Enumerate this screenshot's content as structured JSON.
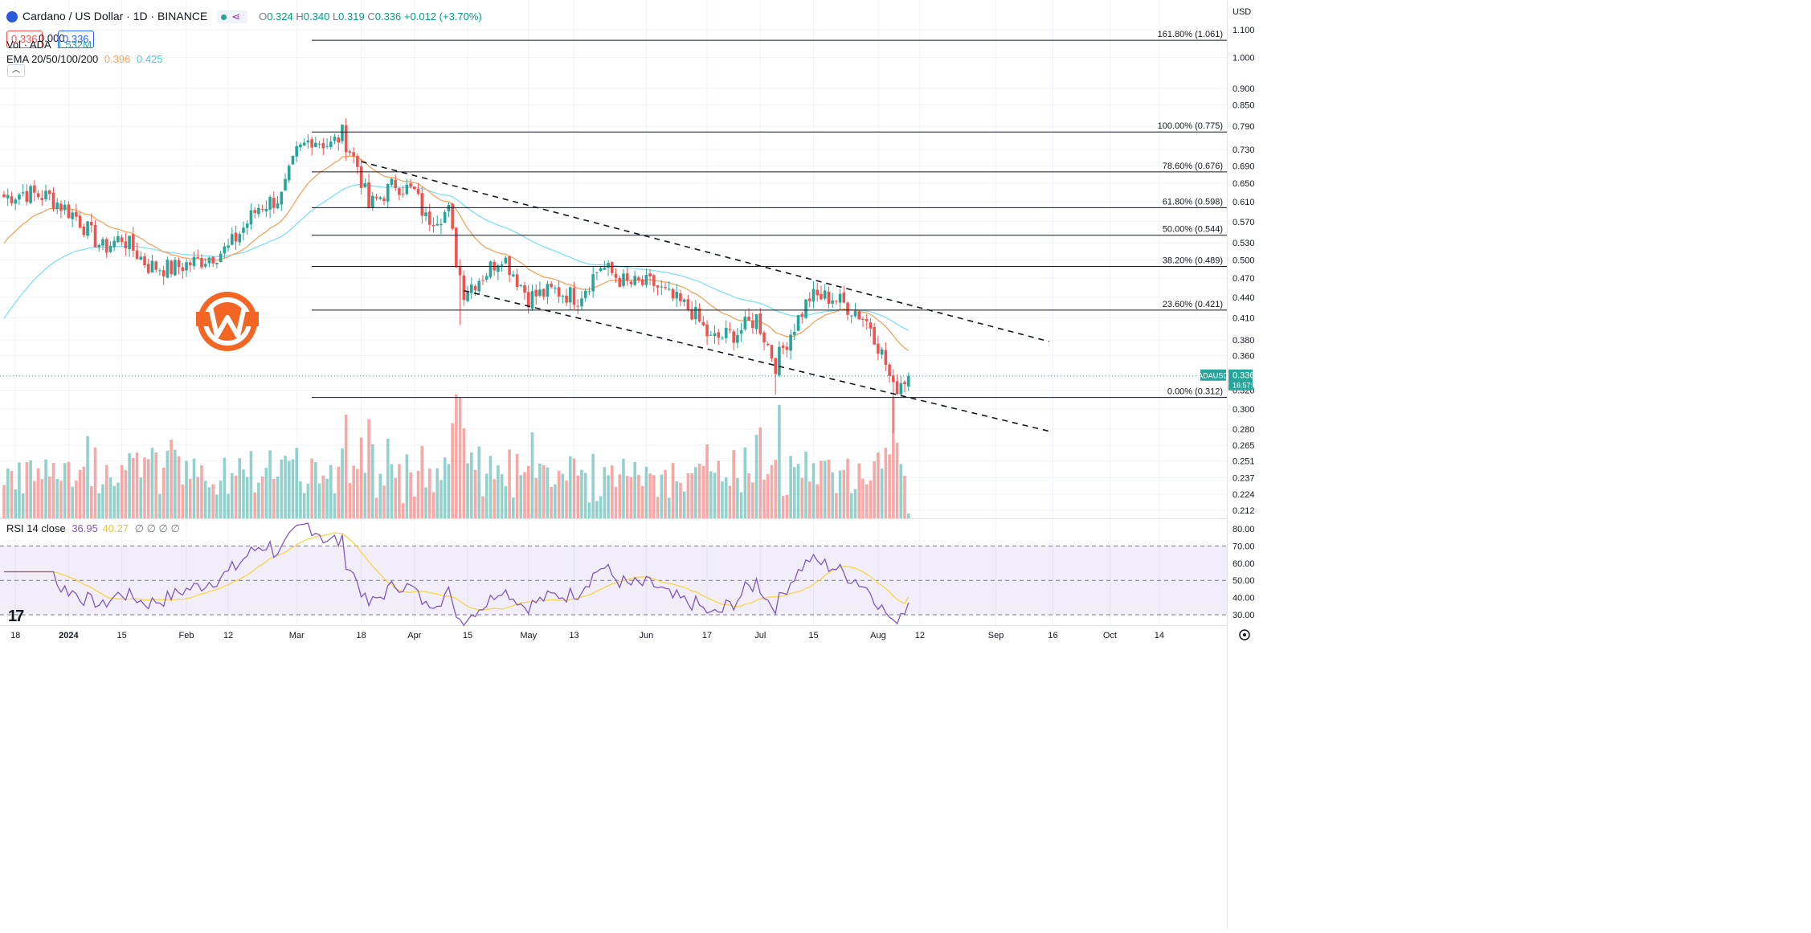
{
  "header": {
    "symbol_title": "Cardano / US Dollar · 1D · BINANCE",
    "ohlc": {
      "o_label": "O",
      "o": "0.324",
      "h_label": "H",
      "h": "0.340",
      "l_label": "L",
      "l": "0.319",
      "c_label": "C",
      "c": "0.336",
      "change": "+0.012 (+3.70%)"
    },
    "sell_price": "0.336",
    "spread": "0.000",
    "buy_price": "0.336",
    "vol_label": "Vol · ADA",
    "vol_value": "1.532M",
    "ema_label": "EMA 20/50/100/200",
    "ema_value_1": "0.396",
    "ema_value_2": "0.425",
    "rsi_label": "RSI 14 close",
    "rsi_value": "36.95",
    "rsi_ma_value": "40.27",
    "rsi_extra": "∅ ∅ ∅ ∅"
  },
  "axis": {
    "currency": "USD",
    "price_ticks": [
      "1.100",
      "1.000",
      "0.900",
      "0.850",
      "0.790",
      "0.730",
      "0.690",
      "0.650",
      "0.610",
      "0.570",
      "0.530",
      "0.500",
      "0.470",
      "0.440",
      "0.410",
      "0.380",
      "0.360",
      "0.320",
      "0.300",
      "0.280",
      "0.265",
      "0.251",
      "0.237",
      "0.224",
      "0.212"
    ],
    "rsi_ticks": [
      "80.00",
      "70.00",
      "60.00",
      "50.00",
      "40.00",
      "30.00"
    ],
    "date_ticks": [
      "18",
      "2024",
      "15",
      "Feb",
      "12",
      "Mar",
      "18",
      "Apr",
      "15",
      "May",
      "13",
      "Jun",
      "17",
      "Jul",
      "15",
      "Aug",
      "12",
      "Sep",
      "16",
      "Oct",
      "14"
    ]
  },
  "current_price_tag": {
    "symbol": "ADAUSD",
    "price": "0.336",
    "countdown": "16:57:52"
  },
  "fib_levels": [
    {
      "label": "161.80% (1.061)",
      "price": 1.061
    },
    {
      "label": "100.00% (0.775)",
      "price": 0.775
    },
    {
      "label": "78.60% (0.676)",
      "price": 0.676
    },
    {
      "label": "61.80% (0.598)",
      "price": 0.598
    },
    {
      "label": "50.00% (0.544)",
      "price": 0.544
    },
    {
      "label": "38.20% (0.489)",
      "price": 0.489
    },
    {
      "label": "23.60% (0.421)",
      "price": 0.421
    },
    {
      "label": "0.00% (0.312)",
      "price": 0.312
    }
  ],
  "colors": {
    "up": "#26a69a",
    "down": "#ef5350",
    "ema20": "#f7a35c",
    "ema50": "#7fe0f0",
    "rsi": "#7e57c2",
    "rsi_ma": "#f5d64a",
    "logo": "#f26522"
  },
  "chart_data": {
    "type": "candlestick",
    "title": "Cardano / US Dollar · 1D · BINANCE",
    "price_scale": "log",
    "ylim": [
      0.2,
      1.15
    ],
    "x_range": [
      "2023-12-15",
      "2024-10-21"
    ],
    "anchors": [
      {
        "date": "2023-12-15",
        "close": 0.62
      },
      {
        "date": "2023-12-20",
        "close": 0.63
      },
      {
        "date": "2023-12-27",
        "close": 0.62
      },
      {
        "date": "2024-01-03",
        "close": 0.58
      },
      {
        "date": "2024-01-10",
        "close": 0.52
      },
      {
        "date": "2024-01-15",
        "close": 0.54
      },
      {
        "date": "2024-01-22",
        "close": 0.49
      },
      {
        "date": "2024-01-28",
        "close": 0.485
      },
      {
        "date": "2024-02-05",
        "close": 0.5
      },
      {
        "date": "2024-02-12",
        "close": 0.52
      },
      {
        "date": "2024-02-20",
        "close": 0.6
      },
      {
        "date": "2024-02-26",
        "close": 0.62
      },
      {
        "date": "2024-03-01",
        "close": 0.72
      },
      {
        "date": "2024-03-05",
        "close": 0.76
      },
      {
        "date": "2024-03-10",
        "close": 0.74
      },
      {
        "date": "2024-03-13",
        "close": 0.77
      },
      {
        "date": "2024-03-17",
        "close": 0.69
      },
      {
        "date": "2024-03-20",
        "close": 0.6
      },
      {
        "date": "2024-03-27",
        "close": 0.65
      },
      {
        "date": "2024-04-01",
        "close": 0.63
      },
      {
        "date": "2024-04-04",
        "close": 0.575
      },
      {
        "date": "2024-04-10",
        "close": 0.59
      },
      {
        "date": "2024-04-12",
        "close": 0.5
      },
      {
        "date": "2024-04-14",
        "close": 0.45
      },
      {
        "date": "2024-04-20",
        "close": 0.48
      },
      {
        "date": "2024-04-24",
        "close": 0.51
      },
      {
        "date": "2024-05-01",
        "close": 0.44
      },
      {
        "date": "2024-05-08",
        "close": 0.45
      },
      {
        "date": "2024-05-14",
        "close": 0.44
      },
      {
        "date": "2024-05-20",
        "close": 0.49
      },
      {
        "date": "2024-05-27",
        "close": 0.46
      },
      {
        "date": "2024-06-03",
        "close": 0.46
      },
      {
        "date": "2024-06-07",
        "close": 0.44
      },
      {
        "date": "2024-06-13",
        "close": 0.42
      },
      {
        "date": "2024-06-18",
        "close": 0.38
      },
      {
        "date": "2024-06-25",
        "close": 0.39
      },
      {
        "date": "2024-06-30",
        "close": 0.41
      },
      {
        "date": "2024-07-05",
        "close": 0.35
      },
      {
        "date": "2024-07-09",
        "close": 0.39
      },
      {
        "date": "2024-07-14",
        "close": 0.44
      },
      {
        "date": "2024-07-20",
        "close": 0.44
      },
      {
        "date": "2024-07-26",
        "close": 0.42
      },
      {
        "date": "2024-07-30",
        "close": 0.4
      },
      {
        "date": "2024-08-03",
        "close": 0.35
      },
      {
        "date": "2024-08-05",
        "close": 0.32
      },
      {
        "date": "2024-08-07",
        "close": 0.33
      },
      {
        "date": "2024-08-09",
        "close": 0.336
      }
    ],
    "ema20_last": 0.396,
    "ema50_last": 0.425,
    "volume_last": "1.532M",
    "rsi": {
      "period": 14,
      "last": 36.95,
      "ma_last": 40.27,
      "ylim": [
        25,
        85
      ]
    },
    "trendlines": [
      {
        "style": "dashed",
        "from": {
          "date": "2024-03-18",
          "price": 0.7
        },
        "to": {
          "date": "2024-09-15",
          "price": 0.378
        }
      },
      {
        "style": "dashed",
        "from": {
          "date": "2024-04-14",
          "price": 0.45
        },
        "to": {
          "date": "2024-09-15",
          "price": 0.278
        }
      }
    ]
  }
}
